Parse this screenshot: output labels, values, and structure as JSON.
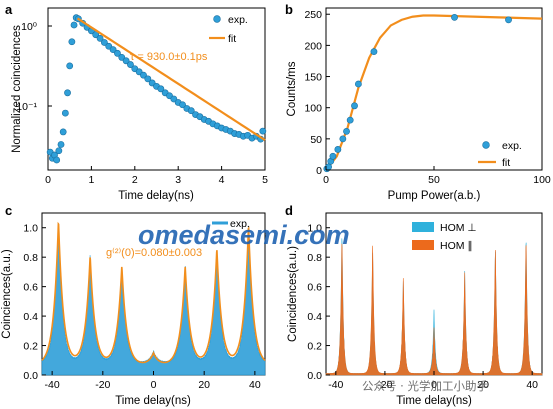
{
  "watermark": "omedasemi.com",
  "watermark_bottom": "公众号 · 光学加工小助手",
  "colors": {
    "data": "#2f9fd8",
    "fit": "#f28e1c",
    "hom_perp": "#2fb1dc",
    "hom_par": "#ec6a1c",
    "watermark": "#1a5fb0"
  },
  "panels": [
    {
      "panel": "a",
      "axis_labels": {
        "x": "Time delay(ns)",
        "y": "Normalized coincidences"
      },
      "legend": {
        "exp": "exp.",
        "fit": "fit"
      },
      "annotation": "τ = 930.0±0.1ps",
      "xticks": [
        "0",
        "1",
        "2",
        "3",
        "4",
        "5"
      ],
      "yticks": [
        "10⁰",
        "10⁻¹"
      ]
    },
    {
      "panel": "b",
      "axis_labels": {
        "x": "Pump Power(a.b.)",
        "y": "Counts/ms"
      },
      "legend": {
        "exp": "exp.",
        "fit": "fit"
      },
      "xticks": [
        "0",
        "50",
        "100"
      ],
      "yticks": [
        "0",
        "50",
        "100",
        "150",
        "200",
        "250"
      ]
    },
    {
      "panel": "c",
      "axis_labels": {
        "x": "Time delay(ns)",
        "y": "Coinciences(a.u.)"
      },
      "legend": {
        "exp": "exp."
      },
      "annotation": "g⁽²⁾(0)=0.080±0.003",
      "xticks": [
        "-40",
        "-20",
        "0",
        "20",
        "40"
      ],
      "yticks": [
        "0.0",
        "0.2",
        "0.4",
        "0.6",
        "0.8",
        "1.0"
      ]
    },
    {
      "panel": "d",
      "axis_labels": {
        "x": "Time delay(ns)",
        "y": "Coincidences(a.u.)"
      },
      "legend": {
        "perp": "HOM ⊥",
        "par": "HOM ∥"
      },
      "xticks": [
        "-40",
        "-20",
        "0",
        "20",
        "40"
      ],
      "yticks": [
        "0.0",
        "0.2",
        "0.4",
        "0.6",
        "0.8",
        "1.0"
      ]
    }
  ],
  "chart_data": [
    {
      "panel": "a",
      "type": "scatter",
      "log_y": true,
      "xlim": [
        0,
        5
      ],
      "ylim": [
        0.016,
        1.3
      ],
      "lifetime_ns": 0.93,
      "peak_x": 0.68,
      "series": [
        {
          "name": "exp.",
          "points": [
            [
              0.05,
              0.026
            ],
            [
              0.1,
              0.022
            ],
            [
              0.15,
              0.024
            ],
            [
              0.2,
              0.021
            ],
            [
              0.25,
              0.027
            ],
            [
              0.3,
              0.032
            ],
            [
              0.35,
              0.045
            ],
            [
              0.4,
              0.075
            ],
            [
              0.45,
              0.13
            ],
            [
              0.5,
              0.27
            ],
            [
              0.55,
              0.52
            ],
            [
              0.6,
              0.82
            ],
            [
              0.65,
              1.0
            ],
            [
              0.7,
              0.97
            ],
            [
              0.8,
              0.86
            ],
            [
              0.9,
              0.77
            ],
            [
              1.0,
              0.7
            ],
            [
              1.1,
              0.63
            ],
            [
              1.2,
              0.57
            ],
            [
              1.3,
              0.51
            ],
            [
              1.4,
              0.46
            ],
            [
              1.5,
              0.42
            ],
            [
              1.6,
              0.38
            ],
            [
              1.7,
              0.34
            ],
            [
              1.8,
              0.31
            ],
            [
              1.9,
              0.28
            ],
            [
              2.0,
              0.25
            ],
            [
              2.1,
              0.23
            ],
            [
              2.2,
              0.21
            ],
            [
              2.3,
              0.19
            ],
            [
              2.4,
              0.17
            ],
            [
              2.5,
              0.155
            ],
            [
              2.6,
              0.145
            ],
            [
              2.7,
              0.13
            ],
            [
              2.8,
              0.12
            ],
            [
              2.9,
              0.11
            ],
            [
              3.0,
              0.1
            ],
            [
              3.1,
              0.094
            ],
            [
              3.2,
              0.085
            ],
            [
              3.3,
              0.08
            ],
            [
              3.4,
              0.072
            ],
            [
              3.5,
              0.068
            ],
            [
              3.6,
              0.063
            ],
            [
              3.7,
              0.06
            ],
            [
              3.8,
              0.056
            ],
            [
              3.9,
              0.053
            ],
            [
              4.0,
              0.05
            ],
            [
              4.1,
              0.048
            ],
            [
              4.2,
              0.046
            ],
            [
              4.3,
              0.043
            ],
            [
              4.4,
              0.042
            ],
            [
              4.5,
              0.04
            ],
            [
              4.6,
              0.041
            ],
            [
              4.7,
              0.038
            ],
            [
              4.8,
              0.04
            ],
            [
              4.9,
              0.037
            ],
            [
              4.95,
              0.046
            ]
          ]
        },
        {
          "name": "fit",
          "type": "line",
          "x_start": 0.68,
          "x_end": 5.0,
          "y_start": 0.98,
          "y_end": 0.036
        }
      ]
    },
    {
      "panel": "b",
      "type": "scatter",
      "xlim": [
        0,
        100
      ],
      "ylim": [
        0,
        260
      ],
      "series": [
        {
          "name": "exp.",
          "points": [
            [
              0.4,
              2
            ],
            [
              1.2,
              5
            ],
            [
              2.2,
              14
            ],
            [
              3.2,
              22
            ],
            [
              5.5,
              33
            ],
            [
              7.8,
              50
            ],
            [
              9.5,
              62
            ],
            [
              11.2,
              80
            ],
            [
              13.2,
              103
            ],
            [
              15.0,
              138
            ],
            [
              22.2,
              190
            ],
            [
              59.5,
              245
            ],
            [
              84.5,
              241
            ]
          ]
        },
        {
          "name": "fit",
          "type": "line",
          "points": [
            [
              0,
              0
            ],
            [
              5,
              22
            ],
            [
              10,
              68
            ],
            [
              15,
              132
            ],
            [
              20,
              180
            ],
            [
              25,
              212
            ],
            [
              30,
              232
            ],
            [
              35,
              241
            ],
            [
              40,
              246
            ],
            [
              45,
              248
            ],
            [
              50,
              248
            ],
            [
              60,
              247
            ],
            [
              70,
              246
            ],
            [
              80,
              245
            ],
            [
              90,
              244
            ],
            [
              100,
              243
            ]
          ]
        }
      ]
    },
    {
      "panel": "c",
      "type": "line",
      "xlim": [
        -44,
        44
      ],
      "ylim": [
        0,
        1.1
      ],
      "peaks": [
        {
          "x": -37.5,
          "exp": 0.97,
          "fit": 0.98
        },
        {
          "x": -25.0,
          "exp": 0.74,
          "fit": 0.74
        },
        {
          "x": -12.5,
          "exp": 0.65,
          "fit": 0.67
        },
        {
          "x": 0.0,
          "exp": 0.08,
          "fit": 0.08
        },
        {
          "x": 12.5,
          "exp": 0.66,
          "fit": 0.67
        },
        {
          "x": 25.0,
          "exp": 0.77,
          "fit": 0.79
        },
        {
          "x": 37.5,
          "exp": 0.95,
          "fit": 0.95
        }
      ],
      "baseline": 0.08
    },
    {
      "panel": "d",
      "type": "line",
      "xlim": [
        -44,
        44
      ],
      "ylim": [
        0,
        1.1
      ],
      "peaks": [
        {
          "x": -37.5,
          "perp": 0.99,
          "par": 0.95
        },
        {
          "x": -25.0,
          "perp": 0.86,
          "par": 0.91
        },
        {
          "x": -12.5,
          "perp": 0.64,
          "par": 0.66
        },
        {
          "x": 0.0,
          "perp": 0.43,
          "par": 0.31
        },
        {
          "x": 12.5,
          "perp": 0.71,
          "par": 0.7
        },
        {
          "x": 25.0,
          "perp": 0.87,
          "par": 0.88
        },
        {
          "x": 37.5,
          "perp": 0.96,
          "par": 0.94
        }
      ],
      "baseline": 0.01
    }
  ]
}
